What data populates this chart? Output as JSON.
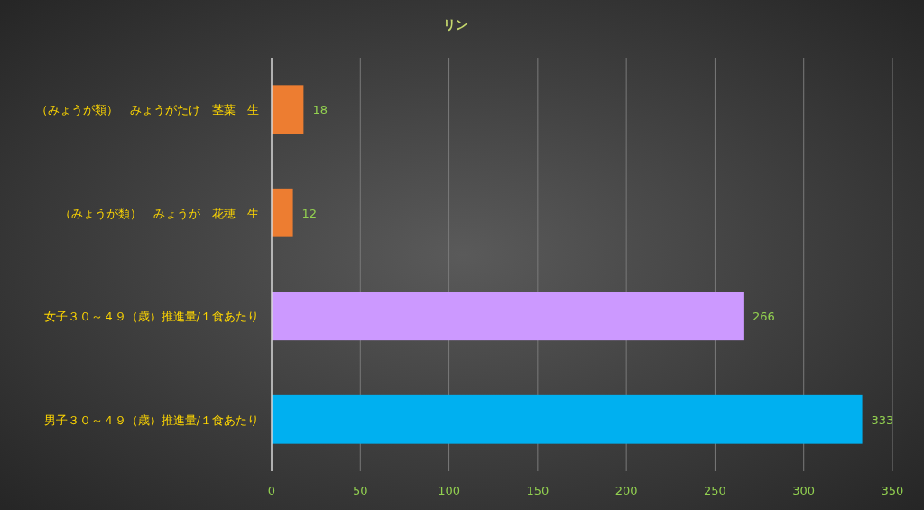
{
  "chart_data": {
    "type": "bar",
    "orientation": "horizontal",
    "title": "リン",
    "categories": [
      "（みょうが類）　みょうがたけ　茎葉　生",
      "（みょうが類）　みょうが　花穂　生",
      "女子３０～４９（歳）推進量/１食あたり",
      "男子３０～４９（歳）推進量/１食あたり"
    ],
    "values": [
      18,
      12,
      266,
      333
    ],
    "colors": [
      "#ed7d31",
      "#ed7d31",
      "#cc99ff",
      "#00b0f0"
    ],
    "xlim": [
      0,
      350
    ],
    "xticks": [
      0,
      50,
      100,
      150,
      200,
      250,
      300,
      350
    ],
    "grid": "x",
    "data_labels": true
  }
}
